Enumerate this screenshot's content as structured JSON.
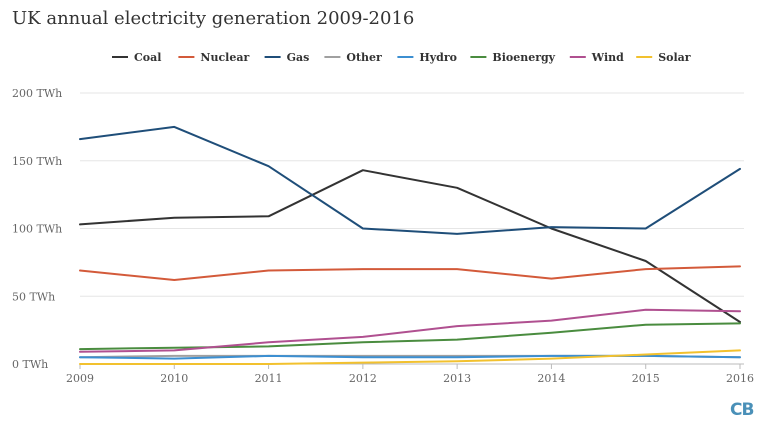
{
  "chart_data": {
    "type": "line",
    "title": "UK annual electricity generation 2009-2016",
    "x": [
      2009,
      2010,
      2011,
      2012,
      2013,
      2014,
      2015,
      2016
    ],
    "ylim": [
      0,
      200
    ],
    "yticks": [
      0,
      50,
      100,
      150,
      200
    ],
    "ytick_labels": [
      "0 TWh",
      "50 TWh",
      "100 TWh",
      "150 TWh",
      "200 TWh"
    ],
    "xtick_labels": [
      "2009",
      "2010",
      "2011",
      "2012",
      "2013",
      "2014",
      "2015",
      "2016"
    ],
    "grid": "horizontal",
    "legend_position": "top",
    "series": [
      {
        "name": "Coal",
        "color": "#333333",
        "values": [
          103,
          108,
          109,
          143,
          130,
          100,
          76,
          31
        ]
      },
      {
        "name": "Nuclear",
        "color": "#d35a3a",
        "values": [
          69,
          62,
          69,
          70,
          70,
          63,
          70,
          72
        ]
      },
      {
        "name": "Gas",
        "color": "#1f4e79",
        "values": [
          166,
          175,
          146,
          100,
          96,
          101,
          100,
          144
        ]
      },
      {
        "name": "Other",
        "color": "#a0a0a0",
        "values": [
          5,
          6,
          6,
          6,
          6,
          6,
          6,
          5
        ]
      },
      {
        "name": "Hydro",
        "color": "#3c8fd1",
        "values": [
          5,
          4,
          6,
          5,
          5,
          6,
          6,
          5
        ]
      },
      {
        "name": "Bioenergy",
        "color": "#4a8c3f",
        "values": [
          11,
          12,
          13,
          16,
          18,
          23,
          29,
          30
        ]
      },
      {
        "name": "Wind",
        "color": "#b05090",
        "values": [
          9,
          10,
          16,
          20,
          28,
          32,
          40,
          39
        ]
      },
      {
        "name": "Solar",
        "color": "#f2c12e",
        "values": [
          0,
          0,
          0,
          1,
          2,
          4,
          7,
          10
        ]
      }
    ]
  },
  "logo_text": "CB"
}
